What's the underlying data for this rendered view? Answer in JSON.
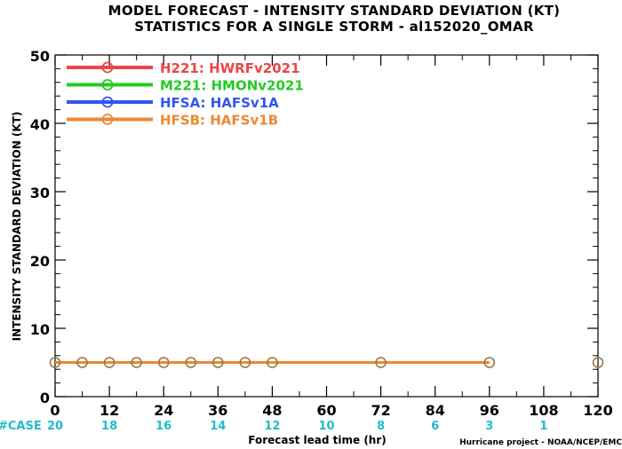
{
  "chart_data": {
    "type": "line",
    "title": "MODEL FORECAST - INTENSITY STANDARD DEVIATION (KT)",
    "subtitle": "STATISTICS FOR A SINGLE STORM - al152020_OMAR",
    "xlabel": "Forecast lead time (hr)",
    "ylabel": "INTENSITY STANDARD DEVIATION (KT)",
    "xlim": [
      0,
      120
    ],
    "ylim": [
      0,
      50
    ],
    "x_ticks": [
      0,
      12,
      24,
      36,
      48,
      60,
      72,
      84,
      96,
      108,
      120
    ],
    "y_ticks": [
      0,
      10,
      20,
      30,
      40,
      50
    ],
    "legend_position": "top-left",
    "series": [
      {
        "name": "H221: HWRFv2021",
        "color": "#ee4444",
        "x": [],
        "y": []
      },
      {
        "name": "M221: HMONv2021",
        "color": "#22cc22",
        "x": [],
        "y": []
      },
      {
        "name": "HFSA: HAFSv1A",
        "color": "#3355ee",
        "x": [],
        "y": []
      },
      {
        "name": "HFSB: HAFSv1B",
        "color": "#ee8833",
        "x": [
          0,
          6,
          12,
          18,
          24,
          30,
          36,
          42,
          48,
          72,
          96
        ],
        "y": [
          5,
          5,
          5,
          5,
          5,
          5,
          5,
          5,
          5,
          5,
          5
        ]
      }
    ],
    "extra_markers": {
      "color": "#997744",
      "x": [
        0,
        6,
        12,
        18,
        24,
        30,
        36,
        42,
        48,
        72,
        96,
        120
      ],
      "y": [
        5,
        5,
        5,
        5,
        5,
        5,
        5,
        5,
        5,
        5,
        5,
        5
      ]
    },
    "cases": {
      "label": "#CASE",
      "color": "#22bbcc",
      "x": [
        0,
        12,
        24,
        36,
        48,
        60,
        72,
        84,
        96,
        108
      ],
      "values": [
        "20",
        "18",
        "16",
        "14",
        "12",
        "10",
        "8",
        "6",
        "3",
        "1"
      ]
    }
  },
  "credit": "Hurricane project - NOAA/NCEP/EMC"
}
